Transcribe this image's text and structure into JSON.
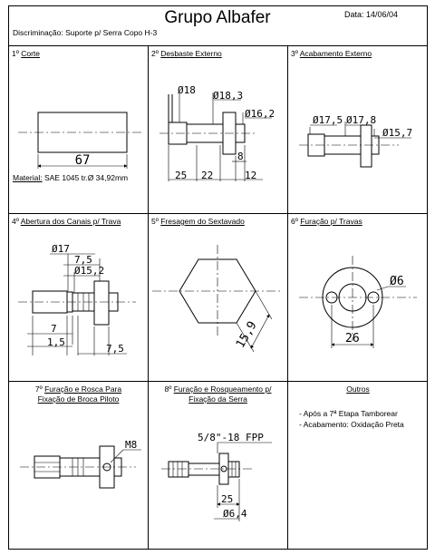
{
  "header": {
    "title": "Grupo Albafer",
    "date": "Data: 14/06/04",
    "discrimination": "Discriminação: Suporte p/ Serra Copo H-3"
  },
  "steps": [
    {
      "num": "1º",
      "title": "Corte",
      "dims": [
        "67"
      ],
      "material_label": "Material:",
      "material_value": "SAE 1045 tr.Ø 34,92mm"
    },
    {
      "num": "2º",
      "title": "Desbaste Externo",
      "dims": [
        "Ø18",
        "Ø18,3",
        "Ø16,2",
        "8",
        "25",
        "22",
        "12"
      ]
    },
    {
      "num": "3º",
      "title": "Acabamento Externo",
      "dims": [
        "Ø17,5",
        "Ø17,8",
        "Ø15,7"
      ]
    },
    {
      "num": "4º",
      "title": "Abertura dos Canais p/ Trava",
      "dims": [
        "Ø17",
        "7,5",
        "Ø15,2",
        "7",
        "1,5",
        "7,5"
      ]
    },
    {
      "num": "5º",
      "title": "Fresagem do Sextavado",
      "dims": [
        "15,9"
      ]
    },
    {
      "num": "6º",
      "title": "Furação p/ Travas",
      "dims": [
        "Ø6",
        "26"
      ]
    },
    {
      "num": "7º",
      "title_line1": "Furação e Rosca Para",
      "title_line2": "Fixação de Broca Piloto",
      "dims": [
        "M8"
      ]
    },
    {
      "num": "8º",
      "title_line1": "Furação e Rosqueamento p/",
      "title_line2": "Fixação da Serra",
      "dims": [
        "5/8\"-18 FPP",
        "25",
        "Ø6,4"
      ]
    }
  ],
  "outros": {
    "title": "Outros",
    "items": [
      "- Após a 7ª Etapa Tamborear",
      "- Acabamento: Oxidação Preta"
    ]
  }
}
